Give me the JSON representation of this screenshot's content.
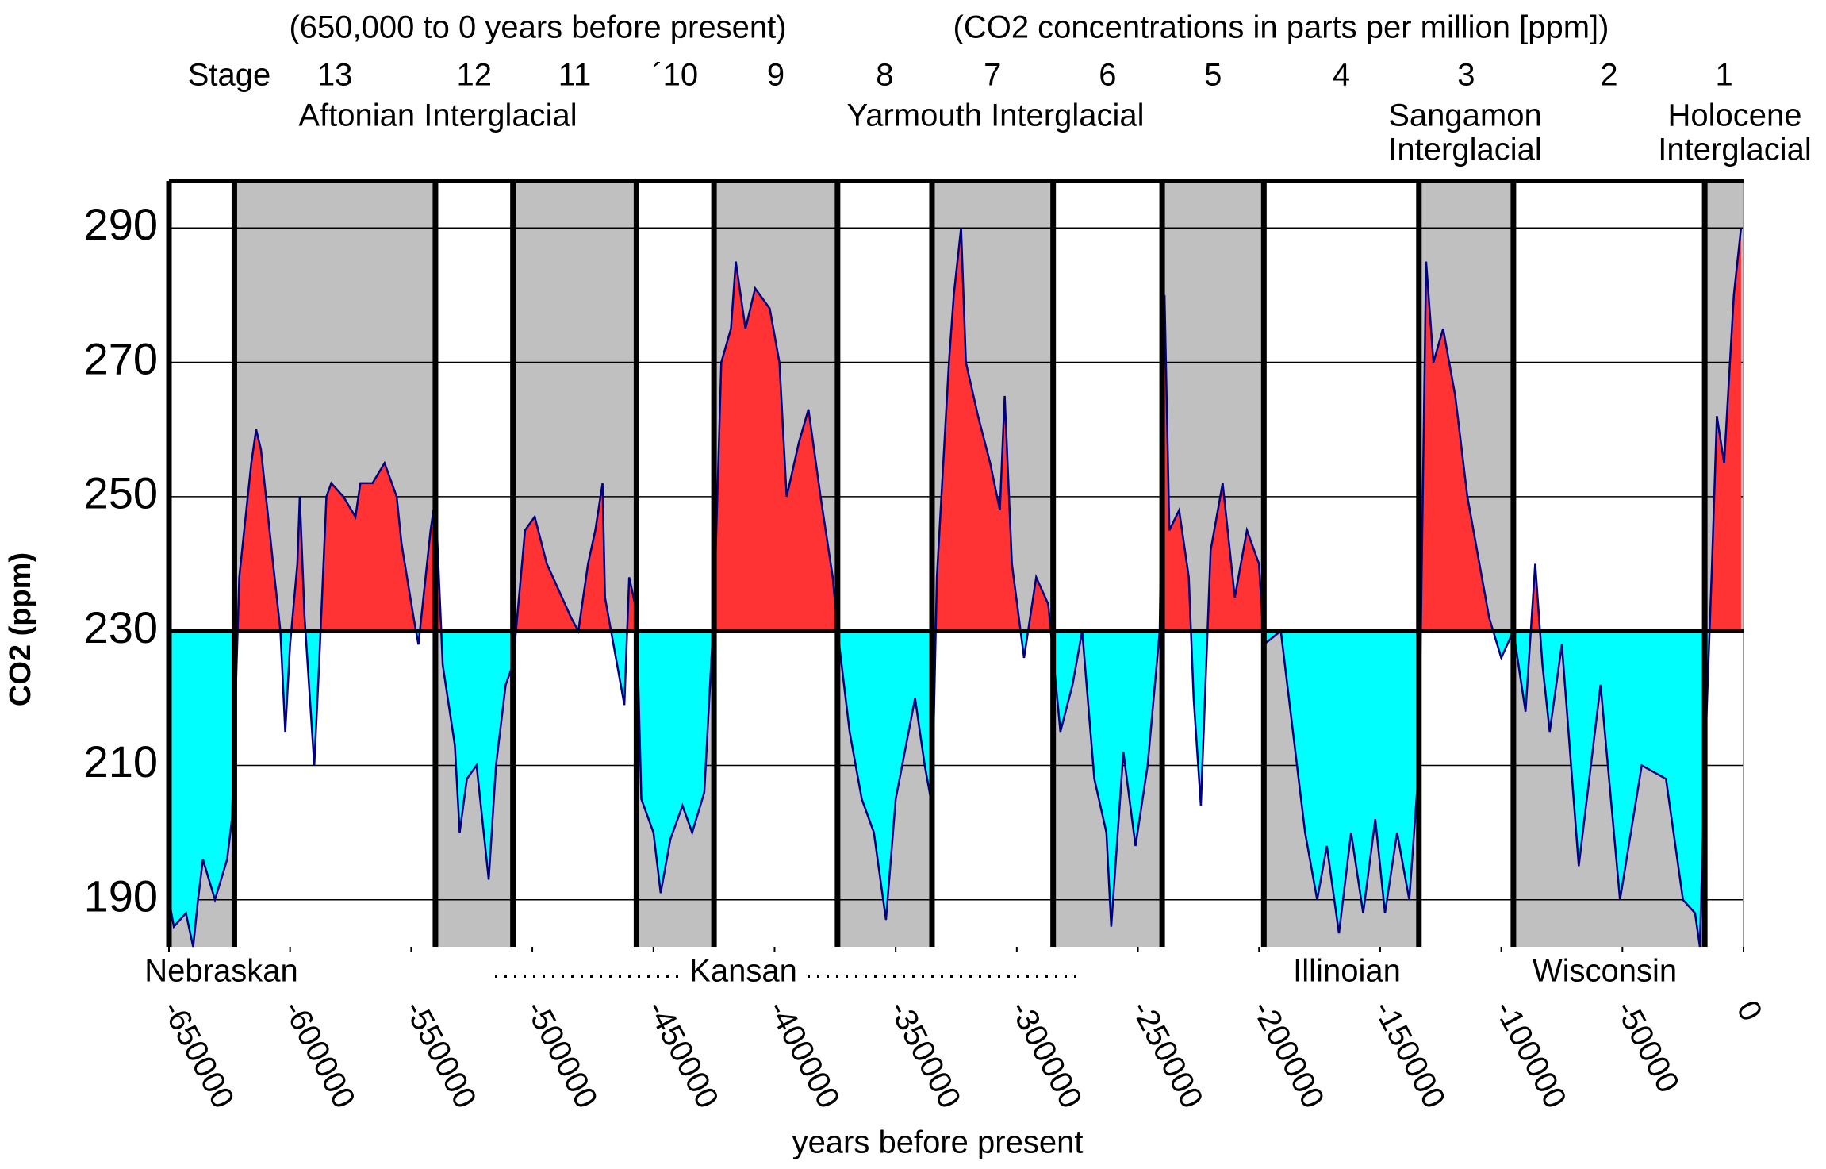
{
  "chart_data": {
    "type": "area",
    "title": "(650,000 to 0 years before present)",
    "subtitle": "(CO2 concentrations in parts per million [ppm])",
    "stage_label": "Stage",
    "xlabel": "years before present",
    "ylabel": "CO2 (ppm)",
    "xlim": [
      -650000,
      0
    ],
    "ylim": [
      183,
      297
    ],
    "xticks": [
      -650000,
      -600000,
      -550000,
      -500000,
      -450000,
      -400000,
      -350000,
      -300000,
      -250000,
      -200000,
      -150000,
      -100000,
      -50000,
      0
    ],
    "yticks": [
      190,
      210,
      230,
      250,
      270,
      290
    ],
    "grid": true,
    "baseline": 230,
    "above_color": "#ff3333",
    "below_color": "#00ffff",
    "line_color": "#000080",
    "band_color": "#c0c0c0",
    "period_boundaries": [
      -650000,
      -623000,
      -540000,
      -508000,
      -457000,
      -425000,
      -374000,
      -335000,
      -285000,
      -240000,
      -198000,
      -134000,
      -95000,
      -16000,
      0
    ],
    "stages": [
      null,
      "13",
      "12",
      "11",
      "´10",
      "9",
      "8",
      "7",
      "6",
      "5",
      "4",
      "3",
      "2",
      "1"
    ],
    "interglacials": [
      "Aftonian Interglacial",
      "Yarmouth Interglacial",
      "Sangamon",
      "Interglacial",
      "Holocene",
      "Interglacial"
    ],
    "glacials": [
      "Nebraskan",
      "Kansan",
      "Illinoian",
      "Wisconsin"
    ],
    "x": [
      -650000,
      -648000,
      -643000,
      -640000,
      -638000,
      -636000,
      -631000,
      -626000,
      -624000,
      -621000,
      -616000,
      -614000,
      -612000,
      -607000,
      -604000,
      -602000,
      -600000,
      -597000,
      -596000,
      -594000,
      -590000,
      -588000,
      -585000,
      -583000,
      -578000,
      -573000,
      -571000,
      -566000,
      -561000,
      -556000,
      -554000,
      -549000,
      -547000,
      -542000,
      -540000,
      -537000,
      -532000,
      -530000,
      -527000,
      -523000,
      -518000,
      -515000,
      -511000,
      -508000,
      -503000,
      -499000,
      -494000,
      -489000,
      -484000,
      -481000,
      -477000,
      -474000,
      -471000,
      -470000,
      -465000,
      -462000,
      -460000,
      -457000,
      -455000,
      -450000,
      -447000,
      -443000,
      -438000,
      -434000,
      -429000,
      -425000,
      -422000,
      -418000,
      -416000,
      -412000,
      -408000,
      -402000,
      -398000,
      -395000,
      -390000,
      -386000,
      -381000,
      -376000,
      -374000,
      -369000,
      -364000,
      -359000,
      -354000,
      -350000,
      -342000,
      -338000,
      -335000,
      -333000,
      -328000,
      -326000,
      -323000,
      -321000,
      -316000,
      -311000,
      -307000,
      -305000,
      -302000,
      -297000,
      -292000,
      -287000,
      -282000,
      -277000,
      -273000,
      -268000,
      -263000,
      -261000,
      -256000,
      -251000,
      -246000,
      -241000,
      -239000,
      -237000,
      -233000,
      -229000,
      -227000,
      -224000,
      -220000,
      -215000,
      -210000,
      -205000,
      -200000,
      -198000,
      -191000,
      -186000,
      -181000,
      -176000,
      -172000,
      -167000,
      -162000,
      -157000,
      -152000,
      -148000,
      -143000,
      -138000,
      -134000,
      -131000,
      -128000,
      -124000,
      -119000,
      -114000,
      -109000,
      -105000,
      -100000,
      -95000,
      -90000,
      -86000,
      -83000,
      -80000,
      -75000,
      -68000,
      -63000,
      -59000,
      -51000,
      -42000,
      -32000,
      -25000,
      -20000,
      -18000,
      -16000,
      -13000,
      -11000,
      -8000,
      -4000,
      -1000
    ],
    "values": [
      190,
      186,
      188,
      183,
      190,
      196,
      190,
      196,
      202,
      238,
      255,
      260,
      257,
      240,
      230,
      215,
      228,
      240,
      250,
      232,
      210,
      225,
      250,
      252,
      250,
      247,
      252,
      252,
      255,
      250,
      243,
      232,
      228,
      245,
      250,
      225,
      213,
      200,
      208,
      210,
      193,
      210,
      222,
      225,
      245,
      247,
      240,
      236,
      232,
      230,
      240,
      245,
      252,
      235,
      225,
      219,
      238,
      233,
      205,
      200,
      191,
      199,
      204,
      200,
      206,
      233,
      270,
      275,
      285,
      275,
      281,
      278,
      270,
      250,
      258,
      263,
      250,
      238,
      230,
      215,
      205,
      200,
      187,
      205,
      220,
      210,
      204,
      238,
      270,
      280,
      290,
      270,
      262,
      255,
      248,
      265,
      240,
      226,
      238,
      234,
      215,
      222,
      230,
      208,
      200,
      186,
      212,
      198,
      210,
      230,
      280,
      245,
      248,
      238,
      220,
      204,
      242,
      252,
      235,
      245,
      240,
      228,
      230,
      215,
      200,
      190,
      198,
      185,
      200,
      188,
      202,
      188,
      200,
      190,
      210,
      285,
      270,
      275,
      265,
      250,
      240,
      232,
      226,
      230,
      218,
      240,
      225,
      215,
      228,
      195,
      210,
      222,
      190,
      210,
      208,
      190,
      188,
      183,
      210,
      240,
      262,
      255,
      280,
      290
    ]
  }
}
